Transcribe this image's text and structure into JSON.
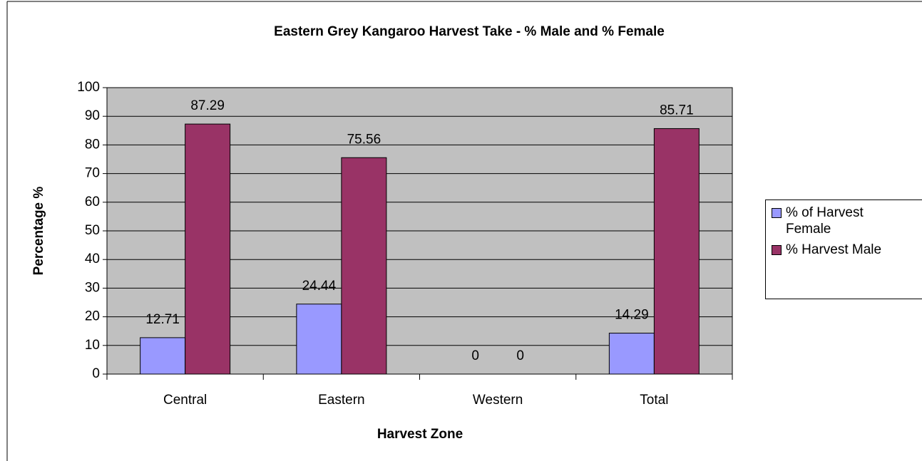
{
  "chart_data": {
    "type": "bar",
    "title": "Eastern Grey Kangaroo Harvest Take - % Male and % Female",
    "x_label": "Harvest Zone",
    "y_label": "Percentage %",
    "categories": [
      "Central",
      "Eastern",
      "Western",
      "Total"
    ],
    "series": [
      {
        "name": "% of Harvest Female",
        "color": "#9999ff",
        "values": [
          12.71,
          24.44,
          0,
          14.29
        ]
      },
      {
        "name": "% Harvest Male",
        "color": "#993366",
        "values": [
          87.29,
          75.56,
          0,
          85.71
        ]
      }
    ],
    "ylim": [
      0,
      100
    ],
    "yticks": [
      0,
      10,
      20,
      30,
      40,
      50,
      60,
      70,
      80,
      90,
      100
    ],
    "grid": true,
    "legend": "right",
    "plot_background": "#c0c0c0"
  }
}
